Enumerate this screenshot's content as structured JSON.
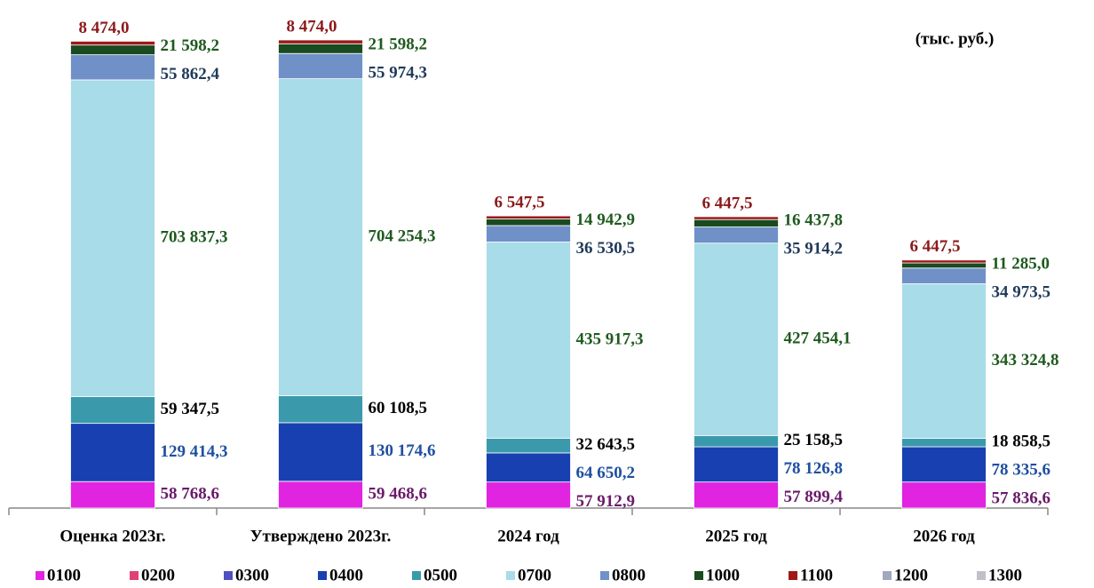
{
  "chart_data": {
    "type": "stacked_bar",
    "subtitle": "(тыс. руб.)",
    "categories": [
      "Оценка 2023г.",
      "Утверждено 2023г.",
      "2024 год",
      "2025 год",
      "2026 год"
    ],
    "series": [
      {
        "name": "0100",
        "color": "#e024e0",
        "label_color": "#6a1a6a",
        "values": [
          58768.6,
          59468.6,
          57912.9,
          57899.4,
          57836.6
        ],
        "value_labels": [
          "58 768,6",
          "59 468,6",
          "57 912,9",
          "57 899,4",
          "57 836,6"
        ]
      },
      {
        "name": "0200",
        "color": "#e0407a",
        "values": [
          0,
          0,
          0,
          0,
          0
        ]
      },
      {
        "name": "0300",
        "color": "#5050c0",
        "values": [
          0,
          0,
          0,
          0,
          0
        ]
      },
      {
        "name": "0400",
        "color": "#1840b0",
        "label_color": "#1f4fa0",
        "values": [
          129414.3,
          130174.6,
          64650.2,
          78126.8,
          78335.6
        ],
        "value_labels": [
          "129 414,3",
          "130 174,6",
          "64 650,2",
          "78 126,8",
          "78 335,6"
        ]
      },
      {
        "name": "0500",
        "color": "#3a9aac",
        "label_color": "#000000",
        "values": [
          59347.5,
          60108.5,
          32643.5,
          25158.5,
          18858.5
        ],
        "value_labels": [
          "59 347,5",
          "60 108,5",
          "32 643,5",
          "25 158,5",
          "18 858,5"
        ]
      },
      {
        "name": "0700",
        "color": "#a8dce8",
        "label_color": "#1e5a1e",
        "values": [
          703837.3,
          704254.3,
          435917.3,
          427454.1,
          343324.8
        ],
        "value_labels": [
          "703 837,3",
          "704 254,3",
          "435 917,3",
          "427 454,1",
          "343 324,8"
        ]
      },
      {
        "name": "0800",
        "color": "#7090c8",
        "label_color": "#1f3a5a",
        "values": [
          55862.4,
          55974.3,
          36530.5,
          35914.2,
          34973.5
        ],
        "value_labels": [
          "55 862,4",
          "55 974,3",
          "36 530,5",
          "35 914,2",
          "34 973,5"
        ]
      },
      {
        "name": "1000",
        "color": "#1a4a20",
        "label_color": "#1e5a1e",
        "values": [
          21598.2,
          21598.2,
          14942.9,
          16437.8,
          11285.0
        ],
        "value_labels": [
          "21 598,2",
          "21 598,2",
          "14 942,9",
          "16 437,8",
          "11 285,0"
        ]
      },
      {
        "name": "1100",
        "color": "#a01818",
        "label_color": "#8b1a1a",
        "values": [
          8474.0,
          8474.0,
          6547.5,
          6447.5,
          6447.5
        ],
        "value_labels": [
          "8 474,0",
          "8 474,0",
          "6 547,5",
          "6 447,5",
          "6 447,5"
        ]
      },
      {
        "name": "1200",
        "color": "#a0a8c0",
        "values": [
          0,
          0,
          0,
          0,
          0
        ]
      },
      {
        "name": "1300",
        "color": "#c0c0c8",
        "values": [
          0,
          0,
          0,
          0,
          0
        ]
      }
    ]
  }
}
